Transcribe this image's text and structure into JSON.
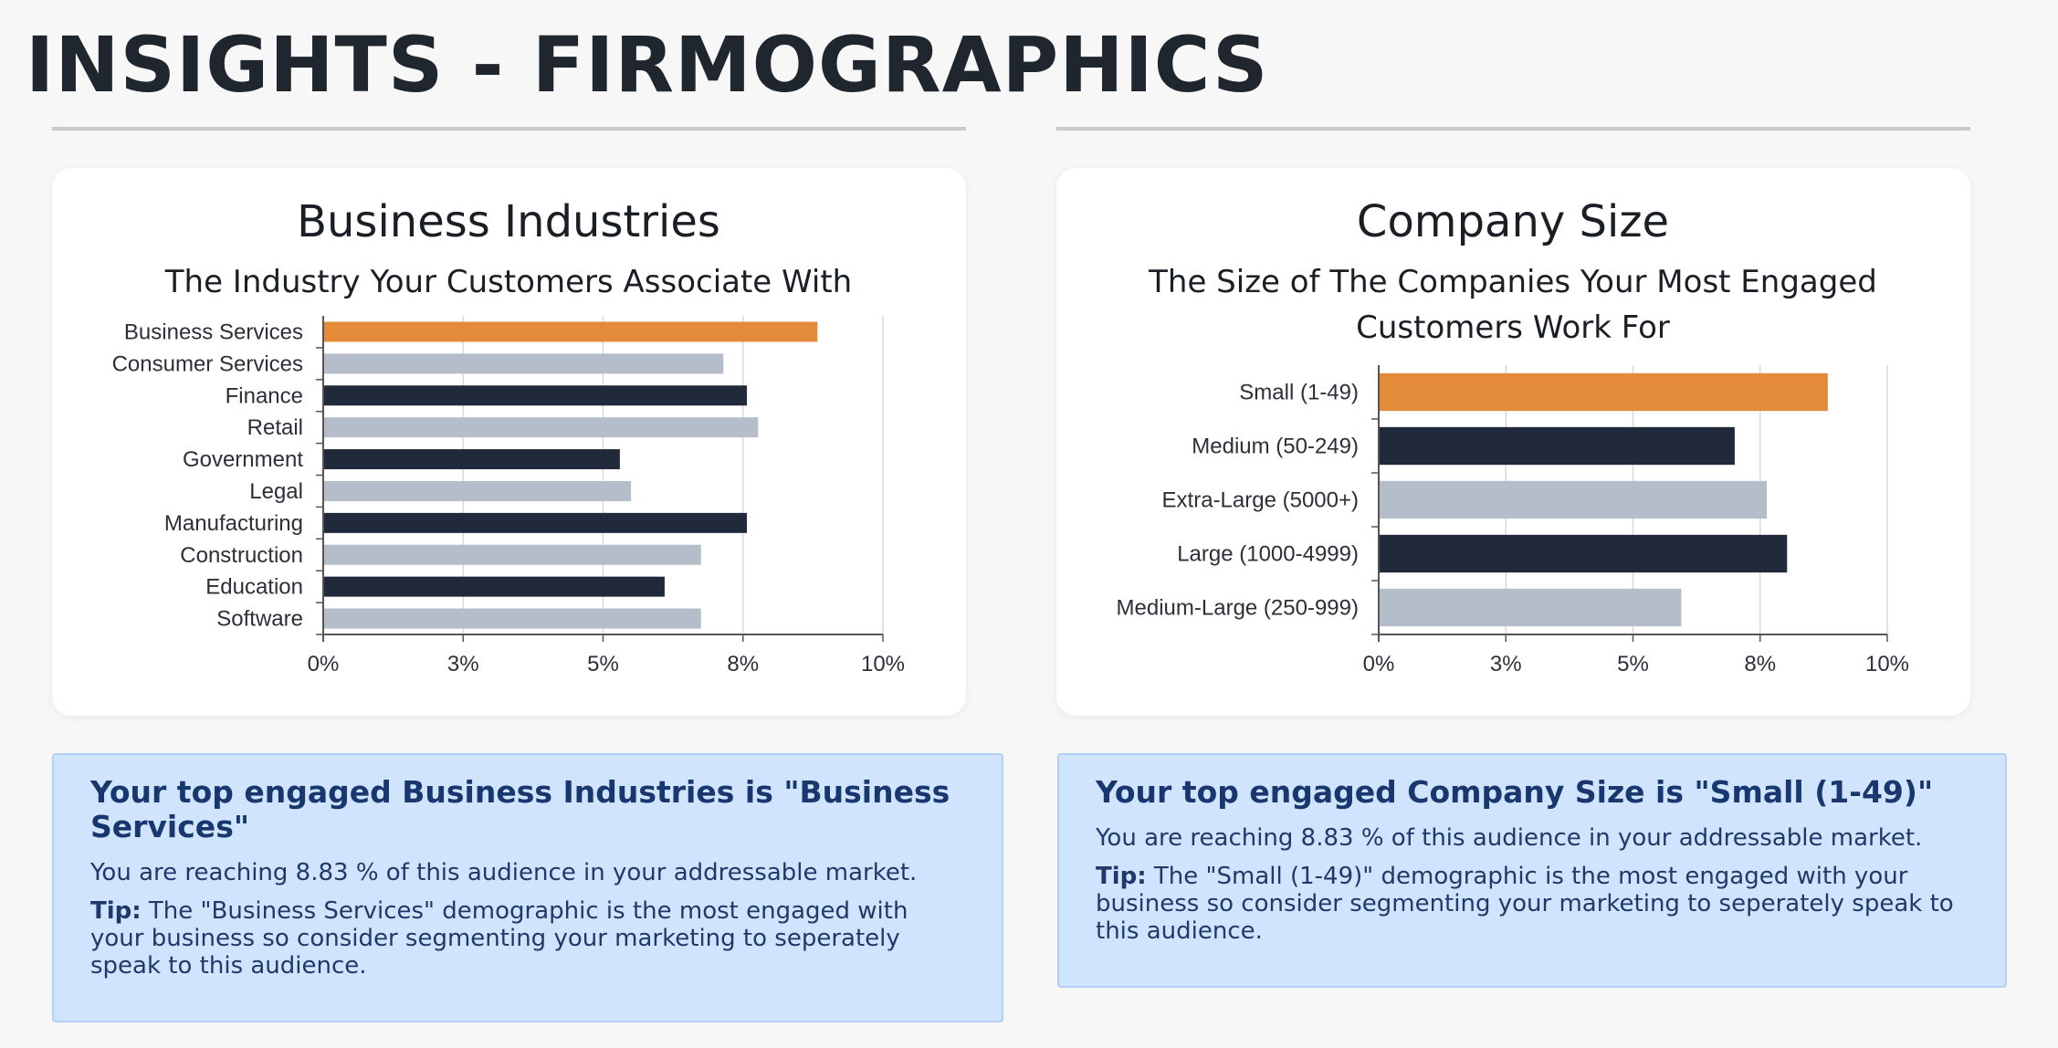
{
  "page": {
    "title": "INSIGHTS - FIRMOGRAPHICS"
  },
  "colors": {
    "highlight": "#e38b39",
    "dark": "#212a3a",
    "light": "#b4bdc9"
  },
  "charts": {
    "industries": {
      "title": "Business Industries",
      "subtitle_lines": [
        "The Industry Your Customers Associate With"
      ]
    },
    "size": {
      "title": "Company Size",
      "subtitle_lines": [
        "The Size of The Companies Your Most Engaged",
        "Customers Work For"
      ]
    }
  },
  "chart_data": [
    {
      "type": "bar",
      "orientation": "horizontal",
      "title": "Business Industries",
      "subtitle": "The Industry Your Customers Associate With",
      "categories": [
        "Business Services",
        "Consumer Services",
        "Finance",
        "Retail",
        "Government",
        "Legal",
        "Manufacturing",
        "Construction",
        "Education",
        "Software"
      ],
      "values": [
        8.83,
        7.15,
        7.57,
        7.77,
        5.3,
        5.5,
        7.57,
        6.75,
        6.1,
        6.75
      ],
      "bar_colors": [
        "#e38b39",
        "#b4bdc9",
        "#212a3a",
        "#b4bdc9",
        "#212a3a",
        "#b4bdc9",
        "#212a3a",
        "#b4bdc9",
        "#212a3a",
        "#b4bdc9"
      ],
      "xlim": [
        0,
        10
      ],
      "tick_values": [
        0,
        2.5,
        5,
        7.5,
        10
      ],
      "tick_labels": [
        "0%",
        "3%",
        "5%",
        "8%",
        "10%"
      ],
      "grid": true,
      "legend": "none"
    },
    {
      "type": "bar",
      "orientation": "horizontal",
      "title": "Company Size",
      "subtitle": "The Size of The Companies Your Most Engaged Customers Work For",
      "categories": [
        "Small (1-49)",
        "Medium (50-249)",
        "Extra-Large (5000+)",
        "Large (1000-4999)",
        "Medium-Large (250-999)"
      ],
      "values": [
        8.83,
        7.0,
        7.63,
        8.03,
        5.95
      ],
      "bar_colors": [
        "#e38b39",
        "#212a3a",
        "#b4bdc9",
        "#212a3a",
        "#b4bdc9"
      ],
      "xlim": [
        0,
        10
      ],
      "tick_values": [
        0,
        2.5,
        5,
        7.5,
        10
      ],
      "tick_labels": [
        "0%",
        "3%",
        "5%",
        "8%",
        "10%"
      ],
      "grid": true,
      "legend": "none"
    }
  ],
  "insights": {
    "industries": {
      "heading": "Your top engaged Business Industries is \"Business Services\"",
      "reach": "You are reaching 8.83 % of this audience in your addressable market.",
      "tip_label": "Tip:",
      "tip_text": " The \"Business Services\" demographic is the most engaged with your business so consider segmenting your marketing to seperately speak to this audience."
    },
    "size": {
      "heading": "Your top engaged Company Size is \"Small (1-49)\"",
      "reach": "You are reaching 8.83 % of this audience in your addressable market.",
      "tip_label": "Tip:",
      "tip_text": " The \"Small (1-49)\" demographic is the most engaged with your business so consider segmenting your marketing to seperately speak to this audience."
    }
  }
}
